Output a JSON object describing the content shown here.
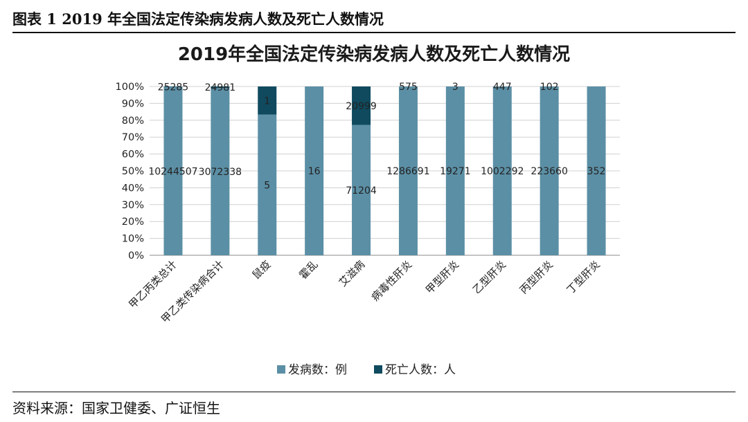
{
  "caption": "图表 1 2019 年全国法定传染病发病人数及死亡人数情况",
  "source": "资料来源：国家卫健委、广证恒生",
  "colors": {
    "incidence": "#5b8fa5",
    "death": "#0f4a5e",
    "grid": "#d0d0d0",
    "axis": "#8a8a8a"
  },
  "chart_data": {
    "type": "bar",
    "stacked": "percent",
    "title": "2019年全国法定传染病发病人数及死亡人数情况",
    "categories": [
      "甲乙丙类总计",
      "甲乙类传染病合计",
      "鼠疫",
      "霍乱",
      "艾滋病",
      "病毒性肝炎",
      "甲型肝炎",
      "乙型肝炎",
      "丙型肝炎",
      "丁型肝炎"
    ],
    "series": [
      {
        "name": "发病数：例",
        "values": [
          10244507,
          3072338,
          5,
          16,
          71204,
          1286691,
          19271,
          1002292,
          223660,
          352
        ]
      },
      {
        "name": "死亡人数：人",
        "values": [
          25285,
          24981,
          1,
          0,
          20999,
          575,
          3,
          447,
          102,
          0
        ]
      }
    ],
    "death_labels": [
      "25285",
      "24981",
      "1",
      "",
      "20999",
      "575",
      "3",
      "447",
      "102",
      ""
    ],
    "yticks": [
      "0%",
      "10%",
      "20%",
      "30%",
      "40%",
      "50%",
      "60%",
      "70%",
      "80%",
      "90%",
      "100%"
    ],
    "ylim": [
      0,
      100
    ],
    "grid": true,
    "legend": "bottom"
  }
}
